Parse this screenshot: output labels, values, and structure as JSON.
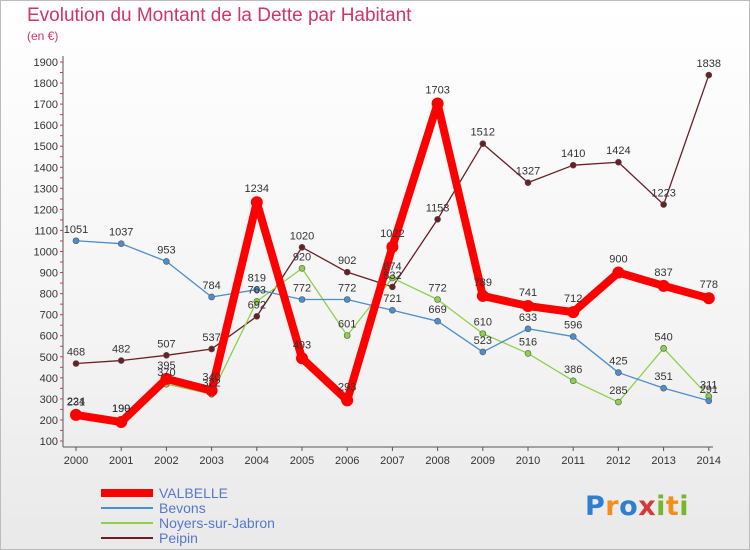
{
  "header": {
    "title": "Evolution du Montant de la Dette par Habitant",
    "subtitle": "(en €)"
  },
  "logo": {
    "text": "Proxiti"
  },
  "chart_data": {
    "type": "line",
    "title": "Evolution du Montant de la Dette par Habitant",
    "subtitle": "(en €)",
    "x": [
      "2000",
      "2001",
      "2002",
      "2003",
      "2004",
      "2005",
      "2006",
      "2007",
      "2008",
      "2009",
      "2010",
      "2011",
      "2012",
      "2013",
      "2014"
    ],
    "ylim": [
      100,
      1900
    ],
    "yticks": [
      100,
      200,
      300,
      400,
      500,
      600,
      700,
      800,
      900,
      1000,
      1100,
      1200,
      1300,
      1400,
      1500,
      1600,
      1700,
      1800,
      1900
    ],
    "grid": false,
    "legend_position": "bottom-left",
    "series": [
      {
        "name": "VALBELLE",
        "color": "#ff0000",
        "values": [
          224,
          190,
          395,
          340,
          1234,
          493,
          293,
          1022,
          1703,
          789,
          741,
          712,
          900,
          837,
          778
        ]
      },
      {
        "name": "Bevons",
        "color": "#4a8fd0",
        "values": [
          1051,
          1037,
          953,
          784,
          819,
          772,
          772,
          721,
          669,
          523,
          633,
          596,
          425,
          351,
          291
        ]
      },
      {
        "name": "Noyers-sur-Jabron",
        "color": "#8cd14a",
        "values": [
          231,
          199,
          370,
          322,
          763,
          920,
          601,
          874,
          772,
          610,
          516,
          386,
          285,
          540,
          311
        ]
      },
      {
        "name": "Peipin",
        "color": "#6b1e24",
        "values": [
          468,
          482,
          507,
          537,
          692,
          1020,
          902,
          832,
          1153,
          1512,
          1327,
          1410,
          1424,
          1223,
          1838
        ]
      }
    ]
  }
}
